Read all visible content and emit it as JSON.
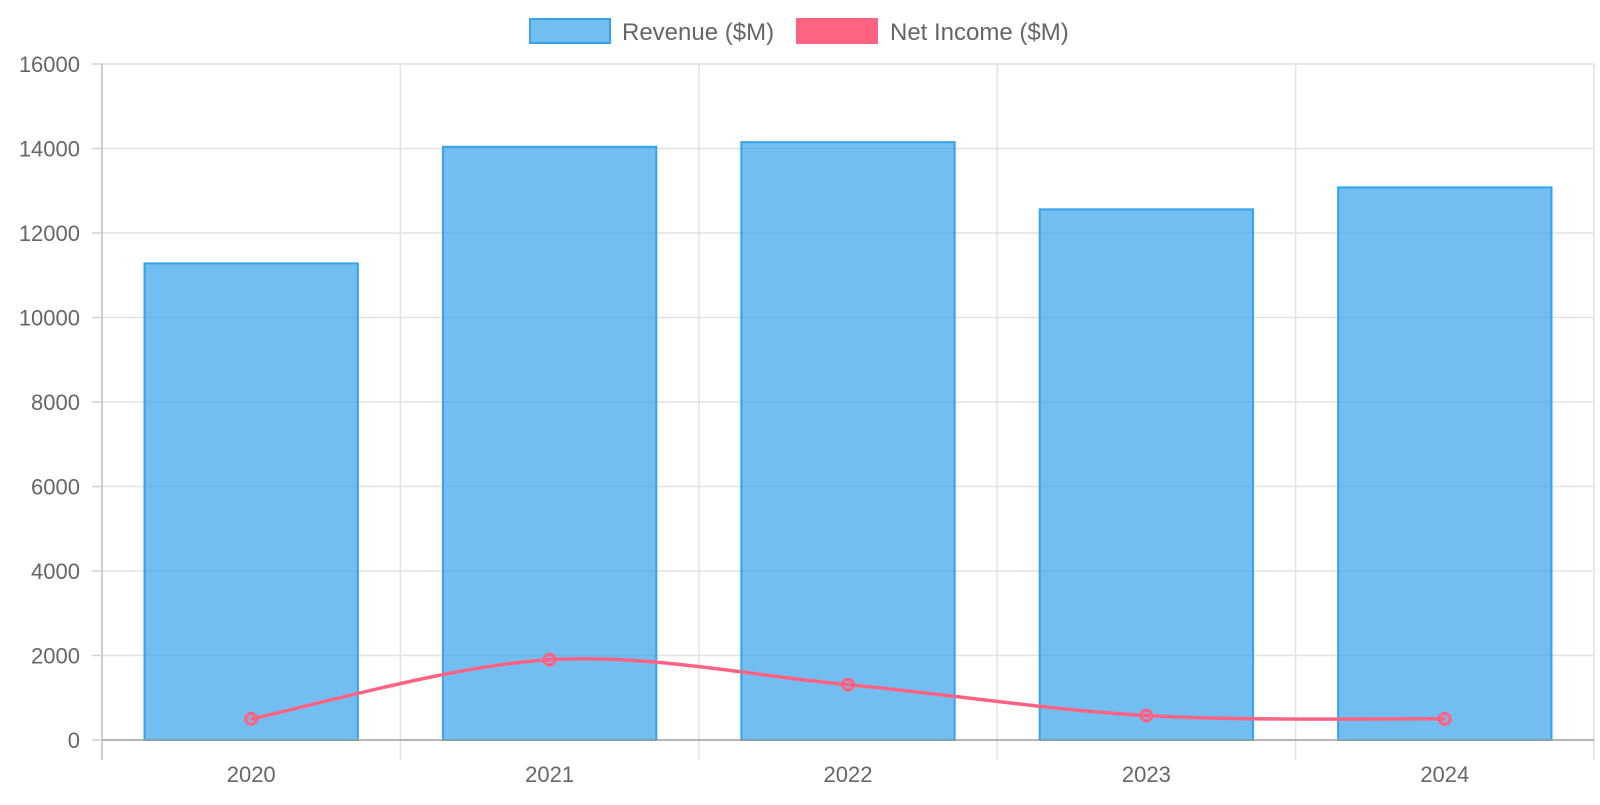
{
  "chart_data": {
    "type": "bar",
    "categories": [
      "2020",
      "2021",
      "2022",
      "2023",
      "2024"
    ],
    "series": [
      {
        "name": "Revenue ($M)",
        "type": "bar",
        "values": [
          11280,
          14040,
          14150,
          12560,
          13080
        ],
        "color": "#36a2eb",
        "fill": "rgba(54,162,235,0.7)"
      },
      {
        "name": "Net Income ($M)",
        "type": "line",
        "values": [
          500,
          1900,
          1310,
          580,
          500
        ],
        "color": "#ff6384"
      }
    ],
    "y_ticks": [
      "0",
      "2000",
      "4000",
      "6000",
      "8000",
      "10000",
      "12000",
      "14000",
      "16000"
    ],
    "ylim": [
      0,
      16000
    ],
    "grid": true,
    "legend_position": "top-center"
  }
}
